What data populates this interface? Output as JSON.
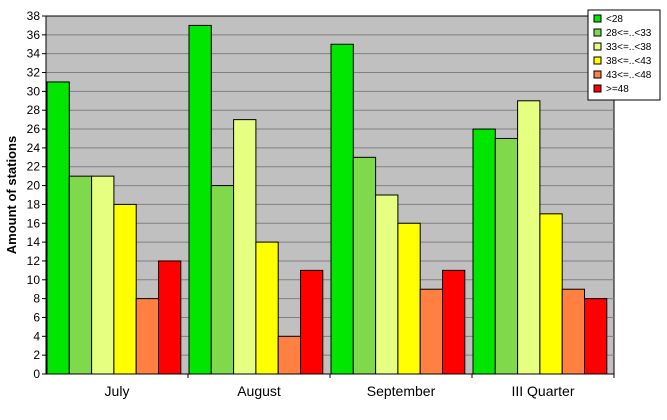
{
  "chart_data": {
    "type": "bar",
    "ylabel": "Amount of stations",
    "ylim": [
      0,
      38
    ],
    "ytick_step": 2,
    "grid": true,
    "legend_position": "top-right",
    "plot_background": "#c0c0c0",
    "categories": [
      "July",
      "August",
      "September",
      "III Quarter"
    ],
    "series": [
      {
        "name": "<28",
        "color": "#00e600",
        "values": [
          31,
          37,
          35,
          26
        ]
      },
      {
        "name": "28<=..<33",
        "color": "#7fd94a",
        "values": [
          21,
          20,
          23,
          25
        ]
      },
      {
        "name": "33<=..<38",
        "color": "#e6ff80",
        "values": [
          21,
          27,
          19,
          29
        ]
      },
      {
        "name": "38<=..<43",
        "color": "#ffff00",
        "values": [
          18,
          14,
          16,
          17
        ]
      },
      {
        "name": "43<=..<48",
        "color": "#ff8040",
        "values": [
          8,
          4,
          9,
          9
        ]
      },
      {
        "name": ">=48",
        "color": "#ff0000",
        "values": [
          12,
          11,
          11,
          8
        ]
      }
    ]
  }
}
